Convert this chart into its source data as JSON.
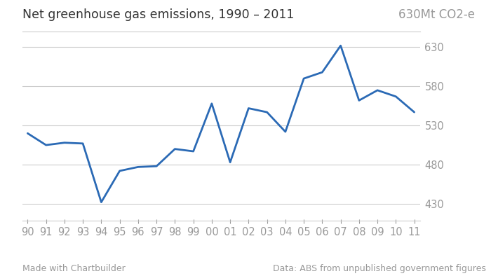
{
  "title": "Net greenhouse gas emissions, 1990 – 2011",
  "unit_label": "630Mt CO2-e",
  "years": [
    1990,
    1991,
    1992,
    1993,
    1994,
    1995,
    1996,
    1997,
    1998,
    1999,
    2000,
    2001,
    2002,
    2003,
    2004,
    2005,
    2006,
    2007,
    2008,
    2009,
    2010,
    2011
  ],
  "values": [
    520,
    505,
    508,
    507,
    432,
    472,
    477,
    478,
    500,
    497,
    558,
    483,
    552,
    547,
    522,
    590,
    598,
    632,
    562,
    575,
    567,
    547
  ],
  "line_color": "#2b6ab5",
  "line_width": 2.0,
  "yticks": [
    430,
    480,
    530,
    580,
    630
  ],
  "ylim": [
    410,
    648
  ],
  "footer_left": "Made with Chartbuilder",
  "footer_right": "Data: ABS from unpublished government figures",
  "background_color": "#ffffff",
  "grid_color": "#cccccc",
  "tick_label_color": "#999999",
  "title_color": "#333333",
  "title_fontsize": 12.5,
  "unit_label_fontsize": 12,
  "tick_fontsize": 10.5,
  "footer_fontsize": 9
}
